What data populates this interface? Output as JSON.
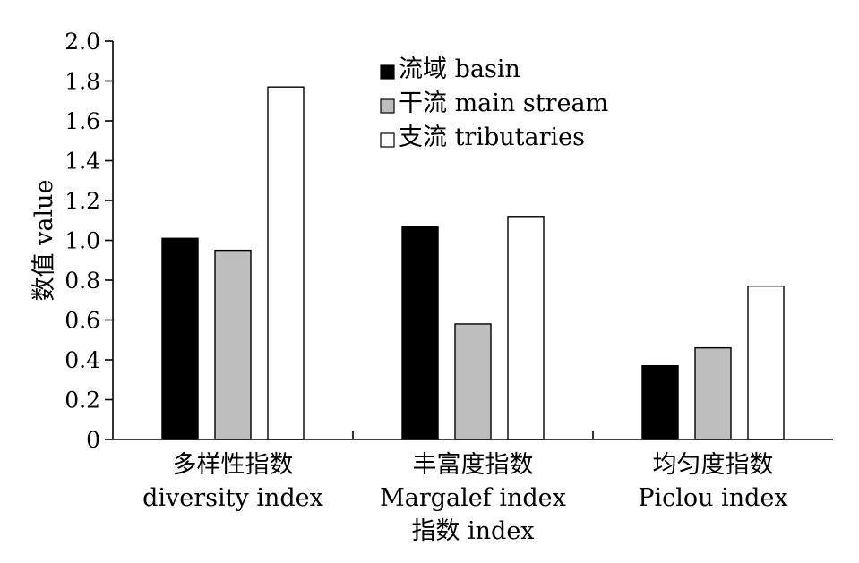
{
  "chart_data": {
    "type": "bar",
    "title": "",
    "ylabel": "数值 value",
    "xlabel": "指数 index",
    "ylim": [
      0,
      2.0
    ],
    "yticks": [
      0,
      0.2,
      0.4,
      0.6,
      0.8,
      1.0,
      1.2,
      1.4,
      1.6,
      1.8,
      2.0
    ],
    "ytick_labels": [
      "0",
      "0.2",
      "0.4",
      "0.6",
      "0.8",
      "1.0",
      "1.2",
      "1.4",
      "1.6",
      "1.8",
      "2.0"
    ],
    "categories": [
      {
        "line1": "多样性指数",
        "line2": "diversity index"
      },
      {
        "line1": "丰富度指数",
        "line2": "Margalef index"
      },
      {
        "line1": "均匀度指数",
        "line2": "Piclou index"
      }
    ],
    "series": [
      {
        "name": "流域 basin",
        "color": "#000000",
        "values": [
          1.01,
          1.07,
          0.37
        ]
      },
      {
        "name": "干流 main stream",
        "color": "#bebebe",
        "values": [
          0.95,
          0.58,
          0.46
        ]
      },
      {
        "name": "支流 tributaries",
        "color": "#ffffff",
        "values": [
          1.77,
          1.12,
          0.77
        ]
      }
    ],
    "legend_position": "top-center",
    "grid": false
  }
}
